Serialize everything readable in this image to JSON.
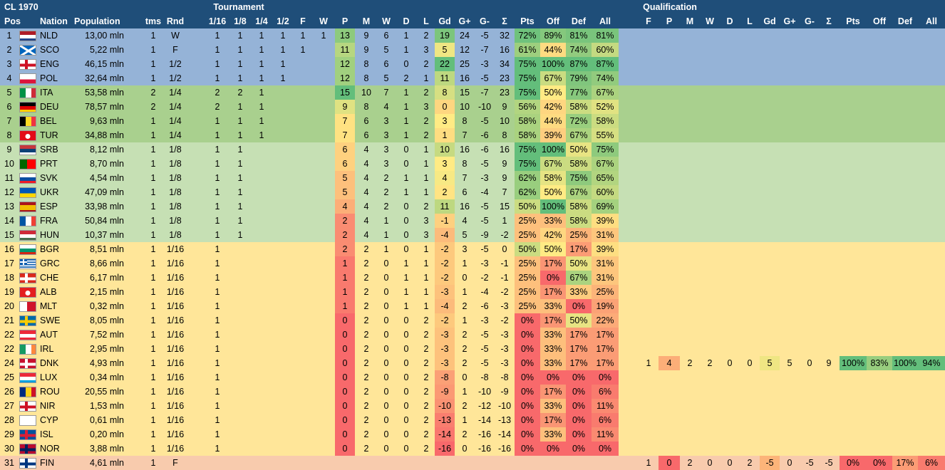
{
  "title": "CL 1970",
  "group_tournament": "Tournament",
  "group_qualification": "Qualification",
  "headers": {
    "pos": "Pos",
    "nation": "Nation",
    "population": "Population",
    "tms": "tms",
    "rnd": "Rnd",
    "r16": "1/16",
    "r8": "1/8",
    "r4": "1/4",
    "r2": "1/2",
    "f": "F",
    "w": "W",
    "p": "P",
    "m": "M",
    "wins": "W",
    "d": "D",
    "l": "L",
    "gd": "Gd",
    "gp": "G+",
    "gm": "G-",
    "sum": "Σ",
    "pts": "Pts",
    "off": "Off",
    "def": "Def",
    "all": "All",
    "qf": "F",
    "qp": "P",
    "qm": "M",
    "qw": "W",
    "qd": "D",
    "ql": "L",
    "qgd": "Gd",
    "qgp": "G+",
    "qgm": "G-",
    "qsum": "Σ",
    "qpts": "Pts",
    "qoff": "Off",
    "qdef": "Def",
    "qall": "All"
  },
  "colors": {
    "header": "#1f4e79",
    "tier_blue": "#95b3d7",
    "tier_green": "#a9d08e",
    "tier_lightgreen": "#c6e0b4",
    "tier_yellow": "#ffe699",
    "tier_salmon": "#f8cbad",
    "good": "#63be7b",
    "mid": "#ffeb84",
    "bad": "#f8696b"
  },
  "rows": [
    {
      "pos": "1",
      "code": "NLD",
      "pop": "13,00 mln",
      "tms": "1",
      "rnd": "W",
      "r16": "1",
      "r8": "1",
      "r4": "1",
      "r2": "1",
      "f": "1",
      "w": "1",
      "p": "13",
      "m": "9",
      "w2": "6",
      "d": "1",
      "l": "2",
      "gd": "19",
      "gp": "24",
      "gm": "-5",
      "sum": "32",
      "pts": "72%",
      "off": "89%",
      "def": "81%",
      "all": "81%"
    },
    {
      "pos": "2",
      "code": "SCO",
      "pop": "5,22 mln",
      "tms": "1",
      "rnd": "F",
      "r16": "1",
      "r8": "1",
      "r4": "1",
      "r2": "1",
      "f": "1",
      "w": "",
      "p": "11",
      "m": "9",
      "w2": "5",
      "d": "1",
      "l": "3",
      "gd": "5",
      "gp": "12",
      "gm": "-7",
      "sum": "16",
      "pts": "61%",
      "off": "44%",
      "def": "74%",
      "all": "60%"
    },
    {
      "pos": "3",
      "code": "ENG",
      "pop": "46,15 mln",
      "tms": "1",
      "rnd": "1/2",
      "r16": "1",
      "r8": "1",
      "r4": "1",
      "r2": "1",
      "f": "",
      "w": "",
      "p": "12",
      "m": "8",
      "w2": "6",
      "d": "0",
      "l": "2",
      "gd": "22",
      "gp": "25",
      "gm": "-3",
      "sum": "34",
      "pts": "75%",
      "off": "100%",
      "def": "87%",
      "all": "87%"
    },
    {
      "pos": "4",
      "code": "POL",
      "pop": "32,64 mln",
      "tms": "1",
      "rnd": "1/2",
      "r16": "1",
      "r8": "1",
      "r4": "1",
      "r2": "1",
      "f": "",
      "w": "",
      "p": "12",
      "m": "8",
      "w2": "5",
      "d": "2",
      "l": "1",
      "gd": "11",
      "gp": "16",
      "gm": "-5",
      "sum": "23",
      "pts": "75%",
      "off": "67%",
      "def": "79%",
      "all": "74%"
    },
    {
      "pos": "5",
      "code": "ITA",
      "pop": "53,58 mln",
      "tms": "2",
      "rnd": "1/4",
      "r16": "2",
      "r8": "2",
      "r4": "1",
      "r2": "",
      "f": "",
      "w": "",
      "p": "15",
      "m": "10",
      "w2": "7",
      "d": "1",
      "l": "2",
      "gd": "8",
      "gp": "15",
      "gm": "-7",
      "sum": "23",
      "pts": "75%",
      "off": "50%",
      "def": "77%",
      "all": "67%"
    },
    {
      "pos": "6",
      "code": "DEU",
      "pop": "78,57 mln",
      "tms": "2",
      "rnd": "1/4",
      "r16": "2",
      "r8": "1",
      "r4": "1",
      "r2": "",
      "f": "",
      "w": "",
      "p": "9",
      "m": "8",
      "w2": "4",
      "d": "1",
      "l": "3",
      "gd": "0",
      "gp": "10",
      "gm": "-10",
      "sum": "9",
      "pts": "56%",
      "off": "42%",
      "def": "58%",
      "all": "52%"
    },
    {
      "pos": "7",
      "code": "BEL",
      "pop": "9,63 mln",
      "tms": "1",
      "rnd": "1/4",
      "r16": "1",
      "r8": "1",
      "r4": "1",
      "r2": "",
      "f": "",
      "w": "",
      "p": "7",
      "m": "6",
      "w2": "3",
      "d": "1",
      "l": "2",
      "gd": "3",
      "gp": "8",
      "gm": "-5",
      "sum": "10",
      "pts": "58%",
      "off": "44%",
      "def": "72%",
      "all": "58%"
    },
    {
      "pos": "8",
      "code": "TUR",
      "pop": "34,88 mln",
      "tms": "1",
      "rnd": "1/4",
      "r16": "1",
      "r8": "1",
      "r4": "1",
      "r2": "",
      "f": "",
      "w": "",
      "p": "7",
      "m": "6",
      "w2": "3",
      "d": "1",
      "l": "2",
      "gd": "1",
      "gp": "7",
      "gm": "-6",
      "sum": "8",
      "pts": "58%",
      "off": "39%",
      "def": "67%",
      "all": "55%"
    },
    {
      "pos": "9",
      "code": "SRB",
      "pop": "8,12 mln",
      "tms": "1",
      "rnd": "1/8",
      "r16": "1",
      "r8": "1",
      "r4": "",
      "r2": "",
      "f": "",
      "w": "",
      "p": "6",
      "m": "4",
      "w2": "3",
      "d": "0",
      "l": "1",
      "gd": "10",
      "gp": "16",
      "gm": "-6",
      "sum": "16",
      "pts": "75%",
      "off": "100%",
      "def": "50%",
      "all": "75%"
    },
    {
      "pos": "10",
      "code": "PRT",
      "pop": "8,70 mln",
      "tms": "1",
      "rnd": "1/8",
      "r16": "1",
      "r8": "1",
      "r4": "",
      "r2": "",
      "f": "",
      "w": "",
      "p": "6",
      "m": "4",
      "w2": "3",
      "d": "0",
      "l": "1",
      "gd": "3",
      "gp": "8",
      "gm": "-5",
      "sum": "9",
      "pts": "75%",
      "off": "67%",
      "def": "58%",
      "all": "67%"
    },
    {
      "pos": "11",
      "code": "SVK",
      "pop": "4,54 mln",
      "tms": "1",
      "rnd": "1/8",
      "r16": "1",
      "r8": "1",
      "r4": "",
      "r2": "",
      "f": "",
      "w": "",
      "p": "5",
      "m": "4",
      "w2": "2",
      "d": "1",
      "l": "1",
      "gd": "4",
      "gp": "7",
      "gm": "-3",
      "sum": "9",
      "pts": "62%",
      "off": "58%",
      "def": "75%",
      "all": "65%"
    },
    {
      "pos": "12",
      "code": "UKR",
      "pop": "47,09 mln",
      "tms": "1",
      "rnd": "1/8",
      "r16": "1",
      "r8": "1",
      "r4": "",
      "r2": "",
      "f": "",
      "w": "",
      "p": "5",
      "m": "4",
      "w2": "2",
      "d": "1",
      "l": "1",
      "gd": "2",
      "gp": "6",
      "gm": "-4",
      "sum": "7",
      "pts": "62%",
      "off": "50%",
      "def": "67%",
      "all": "60%"
    },
    {
      "pos": "13",
      "code": "ESP",
      "pop": "33,98 mln",
      "tms": "1",
      "rnd": "1/8",
      "r16": "1",
      "r8": "1",
      "r4": "",
      "r2": "",
      "f": "",
      "w": "",
      "p": "4",
      "m": "4",
      "w2": "2",
      "d": "0",
      "l": "2",
      "gd": "11",
      "gp": "16",
      "gm": "-5",
      "sum": "15",
      "pts": "50%",
      "off": "100%",
      "def": "58%",
      "all": "69%"
    },
    {
      "pos": "14",
      "code": "FRA",
      "pop": "50,84 mln",
      "tms": "1",
      "rnd": "1/8",
      "r16": "1",
      "r8": "1",
      "r4": "",
      "r2": "",
      "f": "",
      "w": "",
      "p": "2",
      "m": "4",
      "w2": "1",
      "d": "0",
      "l": "3",
      "gd": "-1",
      "gp": "4",
      "gm": "-5",
      "sum": "1",
      "pts": "25%",
      "off": "33%",
      "def": "58%",
      "all": "39%"
    },
    {
      "pos": "15",
      "code": "HUN",
      "pop": "10,37 mln",
      "tms": "1",
      "rnd": "1/8",
      "r16": "1",
      "r8": "1",
      "r4": "",
      "r2": "",
      "f": "",
      "w": "",
      "p": "2",
      "m": "4",
      "w2": "1",
      "d": "0",
      "l": "3",
      "gd": "-4",
      "gp": "5",
      "gm": "-9",
      "sum": "-2",
      "pts": "25%",
      "off": "42%",
      "def": "25%",
      "all": "31%"
    },
    {
      "pos": "16",
      "code": "BGR",
      "pop": "8,51 mln",
      "tms": "1",
      "rnd": "1/16",
      "r16": "1",
      "r8": "",
      "r4": "",
      "r2": "",
      "f": "",
      "w": "",
      "p": "2",
      "m": "2",
      "w2": "1",
      "d": "0",
      "l": "1",
      "gd": "-2",
      "gp": "3",
      "gm": "-5",
      "sum": "0",
      "pts": "50%",
      "off": "50%",
      "def": "17%",
      "all": "39%"
    },
    {
      "pos": "17",
      "code": "GRC",
      "pop": "8,66 mln",
      "tms": "1",
      "rnd": "1/16",
      "r16": "1",
      "r8": "",
      "r4": "",
      "r2": "",
      "f": "",
      "w": "",
      "p": "1",
      "m": "2",
      "w2": "0",
      "d": "1",
      "l": "1",
      "gd": "-2",
      "gp": "1",
      "gm": "-3",
      "sum": "-1",
      "pts": "25%",
      "off": "17%",
      "def": "50%",
      "all": "31%"
    },
    {
      "pos": "18",
      "code": "CHE",
      "pop": "6,17 mln",
      "tms": "1",
      "rnd": "1/16",
      "r16": "1",
      "r8": "",
      "r4": "",
      "r2": "",
      "f": "",
      "w": "",
      "p": "1",
      "m": "2",
      "w2": "0",
      "d": "1",
      "l": "1",
      "gd": "-2",
      "gp": "0",
      "gm": "-2",
      "sum": "-1",
      "pts": "25%",
      "off": "0%",
      "def": "67%",
      "all": "31%"
    },
    {
      "pos": "19",
      "code": "ALB",
      "pop": "2,15 mln",
      "tms": "1",
      "rnd": "1/16",
      "r16": "1",
      "r8": "",
      "r4": "",
      "r2": "",
      "f": "",
      "w": "",
      "p": "1",
      "m": "2",
      "w2": "0",
      "d": "1",
      "l": "1",
      "gd": "-3",
      "gp": "1",
      "gm": "-4",
      "sum": "-2",
      "pts": "25%",
      "off": "17%",
      "def": "33%",
      "all": "25%"
    },
    {
      "pos": "20",
      "code": "MLT",
      "pop": "0,32 mln",
      "tms": "1",
      "rnd": "1/16",
      "r16": "1",
      "r8": "",
      "r4": "",
      "r2": "",
      "f": "",
      "w": "",
      "p": "1",
      "m": "2",
      "w2": "0",
      "d": "1",
      "l": "1",
      "gd": "-4",
      "gp": "2",
      "gm": "-6",
      "sum": "-3",
      "pts": "25%",
      "off": "33%",
      "def": "0%",
      "all": "19%"
    },
    {
      "pos": "21",
      "code": "SWE",
      "pop": "8,05 mln",
      "tms": "1",
      "rnd": "1/16",
      "r16": "1",
      "r8": "",
      "r4": "",
      "r2": "",
      "f": "",
      "w": "",
      "p": "0",
      "m": "2",
      "w2": "0",
      "d": "0",
      "l": "2",
      "gd": "-2",
      "gp": "1",
      "gm": "-3",
      "sum": "-2",
      "pts": "0%",
      "off": "17%",
      "def": "50%",
      "all": "22%"
    },
    {
      "pos": "22",
      "code": "AUT",
      "pop": "7,52 mln",
      "tms": "1",
      "rnd": "1/16",
      "r16": "1",
      "r8": "",
      "r4": "",
      "r2": "",
      "f": "",
      "w": "",
      "p": "0",
      "m": "2",
      "w2": "0",
      "d": "0",
      "l": "2",
      "gd": "-3",
      "gp": "2",
      "gm": "-5",
      "sum": "-3",
      "pts": "0%",
      "off": "33%",
      "def": "17%",
      "all": "17%"
    },
    {
      "pos": "22",
      "code": "IRL",
      "pop": "2,95 mln",
      "tms": "1",
      "rnd": "1/16",
      "r16": "1",
      "r8": "",
      "r4": "",
      "r2": "",
      "f": "",
      "w": "",
      "p": "0",
      "m": "2",
      "w2": "0",
      "d": "0",
      "l": "2",
      "gd": "-3",
      "gp": "2",
      "gm": "-5",
      "sum": "-3",
      "pts": "0%",
      "off": "33%",
      "def": "17%",
      "all": "17%"
    },
    {
      "pos": "24",
      "code": "DNK",
      "pop": "4,93 mln",
      "tms": "1",
      "rnd": "1/16",
      "r16": "1",
      "r8": "",
      "r4": "",
      "r2": "",
      "f": "",
      "w": "",
      "p": "0",
      "m": "2",
      "w2": "0",
      "d": "0",
      "l": "2",
      "gd": "-3",
      "gp": "2",
      "gm": "-5",
      "sum": "-3",
      "pts": "0%",
      "off": "33%",
      "def": "17%",
      "all": "17%",
      "q": {
        "f": "1",
        "p": "4",
        "m": "2",
        "w": "2",
        "d": "0",
        "l": "0",
        "gd": "5",
        "gp": "5",
        "gm": "0",
        "sum": "9",
        "pts": "100%",
        "off": "83%",
        "def": "100%",
        "all": "94%"
      }
    },
    {
      "pos": "25",
      "code": "LUX",
      "pop": "0,34 mln",
      "tms": "1",
      "rnd": "1/16",
      "r16": "1",
      "r8": "",
      "r4": "",
      "r2": "",
      "f": "",
      "w": "",
      "p": "0",
      "m": "2",
      "w2": "0",
      "d": "0",
      "l": "2",
      "gd": "-8",
      "gp": "0",
      "gm": "-8",
      "sum": "-8",
      "pts": "0%",
      "off": "0%",
      "def": "0%",
      "all": "0%"
    },
    {
      "pos": "26",
      "code": "ROU",
      "pop": "20,55 mln",
      "tms": "1",
      "rnd": "1/16",
      "r16": "1",
      "r8": "",
      "r4": "",
      "r2": "",
      "f": "",
      "w": "",
      "p": "0",
      "m": "2",
      "w2": "0",
      "d": "0",
      "l": "2",
      "gd": "-9",
      "gp": "1",
      "gm": "-10",
      "sum": "-9",
      "pts": "0%",
      "off": "17%",
      "def": "0%",
      "all": "6%"
    },
    {
      "pos": "27",
      "code": "NIR",
      "pop": "1,53 mln",
      "tms": "1",
      "rnd": "1/16",
      "r16": "1",
      "r8": "",
      "r4": "",
      "r2": "",
      "f": "",
      "w": "",
      "p": "0",
      "m": "2",
      "w2": "0",
      "d": "0",
      "l": "2",
      "gd": "-10",
      "gp": "2",
      "gm": "-12",
      "sum": "-10",
      "pts": "0%",
      "off": "33%",
      "def": "0%",
      "all": "11%"
    },
    {
      "pos": "28",
      "code": "CYP",
      "pop": "0,61 mln",
      "tms": "1",
      "rnd": "1/16",
      "r16": "1",
      "r8": "",
      "r4": "",
      "r2": "",
      "f": "",
      "w": "",
      "p": "0",
      "m": "2",
      "w2": "0",
      "d": "0",
      "l": "2",
      "gd": "-13",
      "gp": "1",
      "gm": "-14",
      "sum": "-13",
      "pts": "0%",
      "off": "17%",
      "def": "0%",
      "all": "6%"
    },
    {
      "pos": "29",
      "code": "ISL",
      "pop": "0,20 mln",
      "tms": "1",
      "rnd": "1/16",
      "r16": "1",
      "r8": "",
      "r4": "",
      "r2": "",
      "f": "",
      "w": "",
      "p": "0",
      "m": "2",
      "w2": "0",
      "d": "0",
      "l": "2",
      "gd": "-14",
      "gp": "2",
      "gm": "-16",
      "sum": "-14",
      "pts": "0%",
      "off": "33%",
      "def": "0%",
      "all": "11%"
    },
    {
      "pos": "30",
      "code": "NOR",
      "pop": "3,88 mln",
      "tms": "1",
      "rnd": "1/16",
      "r16": "1",
      "r8": "",
      "r4": "",
      "r2": "",
      "f": "",
      "w": "",
      "p": "0",
      "m": "2",
      "w2": "0",
      "d": "0",
      "l": "2",
      "gd": "-16",
      "gp": "0",
      "gm": "-16",
      "sum": "-16",
      "pts": "0%",
      "off": "0%",
      "def": "0%",
      "all": "0%"
    },
    {
      "pos": "31",
      "code": "FIN",
      "pop": "4,61 mln",
      "tms": "1",
      "rnd": "F",
      "r16": "",
      "r8": "",
      "r4": "",
      "r2": "",
      "f": "",
      "w": "",
      "p": "",
      "m": "",
      "w2": "",
      "d": "",
      "l": "",
      "gd": "",
      "gp": "",
      "gm": "",
      "sum": "",
      "pts": "",
      "off": "",
      "def": "",
      "all": "",
      "q": {
        "f": "1",
        "p": "0",
        "m": "2",
        "w": "0",
        "d": "0",
        "l": "2",
        "gd": "-5",
        "gp": "0",
        "gm": "-5",
        "sum": "-5",
        "pts": "0%",
        "off": "0%",
        "def": "17%",
        "all": "6%"
      }
    }
  ]
}
